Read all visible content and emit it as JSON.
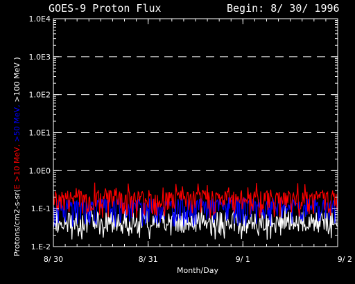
{
  "header": {
    "title": "GOES-9 Proton Flux",
    "begin": "Begin: 8/ 30/ 1996"
  },
  "chart_data": {
    "type": "line",
    "title": "GOES-9 Proton Flux",
    "xlabel": "Month/Day",
    "ylabel_parts": [
      {
        "text": "Protons/cm2-s-sr(",
        "color": "#ffffff"
      },
      {
        "text": "E >10 MeV, ",
        "color": "#ff0000"
      },
      {
        "text": ">50 MeV, ",
        "color": "#0000ff"
      },
      {
        "text": ">100 MeV )",
        "color": "#ffffff"
      }
    ],
    "y_scale": "log",
    "ylim": [
      0.01,
      10000
    ],
    "y_ticks": [
      {
        "value": 10000,
        "label": "1.0E4"
      },
      {
        "value": 1000,
        "label": "1.0E3"
      },
      {
        "value": 100,
        "label": "1.0E2"
      },
      {
        "value": 10,
        "label": "1.0E1"
      },
      {
        "value": 1,
        "label": "1.0E0"
      },
      {
        "value": 0.1,
        "label": "1.E-1"
      },
      {
        "value": 0.01,
        "label": "1.E-2"
      }
    ],
    "gridlines": [
      1000,
      100,
      10,
      1
    ],
    "x_ticks": [
      "8/ 30",
      "8/ 31",
      "9/ 1",
      "9/ 2"
    ],
    "series": [
      {
        "name": ">10 MeV",
        "color": "#ff0000",
        "baseline": 0.18,
        "spread": 0.12,
        "peak_max": 0.5
      },
      {
        "name": ">50 MeV",
        "color": "#0000ff",
        "baseline": 0.11,
        "spread": 0.07,
        "peak_max": 0.2
      },
      {
        "name": ">100 MeV",
        "color": "#ffffff",
        "baseline": 0.05,
        "spread": 0.06,
        "peak_max": 0.12
      }
    ]
  }
}
